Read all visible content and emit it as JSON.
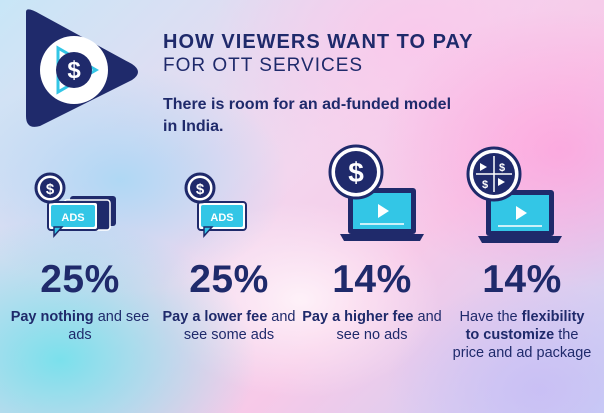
{
  "header": {
    "title": "HOW VIEWERS WANT TO PAY",
    "subtitle": "FOR OTT SERVICES",
    "intro": "There is room for an ad-funded model in India."
  },
  "colors": {
    "navy": "#1f2a6b",
    "cyan": "#33c6e6",
    "white": "#ffffff"
  },
  "icons": {
    "logo": "play-dollar-icon",
    "col1": "ads-chat-bubbles-icon",
    "col2": "dollar-ads-bubble-icon",
    "col3": "dollar-laptop-icon",
    "col4": "flexible-payment-laptop-icon",
    "ads_label": "ADS"
  },
  "stats": [
    {
      "value": "25%",
      "bold": "Pay nothing",
      "rest": " and see ads"
    },
    {
      "value": "25%",
      "bold": "Pay a lower fee",
      "rest": " and see some ads"
    },
    {
      "value": "14%",
      "bold": "Pay a higher fee",
      "rest": " and see no ads"
    },
    {
      "pre": "Have the ",
      "value": "14%",
      "bold": "flexibility to customize",
      "rest": " the price and ad package"
    }
  ]
}
